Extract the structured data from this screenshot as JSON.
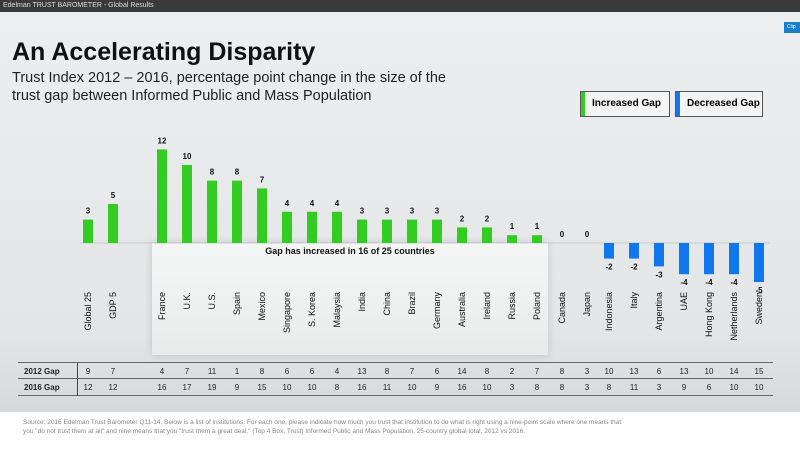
{
  "window_title": "Edelman TRUST BAROMETER - Global Results",
  "clip_button": "Clip",
  "colors": {
    "increased": "#33cc22",
    "decreased": "#1177ee"
  },
  "chart_data": {
    "type": "bar",
    "title": "An Accelerating Disparity",
    "subtitle": "Trust Index 2012 – 2016, percentage point change in the size of the trust gap between Informed Public and Mass Population",
    "categories": [
      "Global 25",
      "GDP 5",
      "France",
      "U.K.",
      "U.S.",
      "Spain",
      "Mexico",
      "Singapore",
      "S. Korea",
      "Malaysia",
      "India",
      "China",
      "Brazil",
      "Germany",
      "Australia",
      "Ireland",
      "Russia",
      "Poland",
      "Canada",
      "Japan",
      "Indonesia",
      "Italy",
      "Argentina",
      "UAE",
      "Hong Kong",
      "Netherlands",
      "Sweden"
    ],
    "values": [
      3,
      5,
      12,
      10,
      8,
      8,
      7,
      4,
      4,
      4,
      3,
      3,
      3,
      3,
      2,
      2,
      1,
      1,
      0,
      0,
      -2,
      -2,
      -3,
      -4,
      -4,
      -4,
      -5
    ],
    "legend": [
      "Increased Gap",
      "Decreased Gap"
    ],
    "legend_position": "top-right",
    "annotation": "Gap has increased in 16 of 25 countries",
    "table": {
      "rows": [
        {
          "label": "2012 Gap",
          "values": [
            "9",
            "7",
            "4",
            "7",
            "11",
            "1",
            "8",
            "6",
            "6",
            "4",
            "13",
            "8",
            "7",
            "6",
            "14",
            "8",
            "2",
            "7",
            "8",
            "3",
            "10",
            "13",
            "6",
            "13",
            "10",
            "14",
            "15"
          ]
        },
        {
          "label": "2016 Gap",
          "values": [
            "12",
            "12",
            "16",
            "17",
            "19",
            "9",
            "15",
            "10",
            "10",
            "8",
            "16",
            "11",
            "10",
            "9",
            "16",
            "10",
            "3",
            "8",
            "8",
            "3",
            "8",
            "11",
            "3",
            "9",
            "6",
            "10",
            "10"
          ]
        }
      ]
    }
  },
  "source": "Source: 2016 Edelman Trust Barometer Q11-14. Below is a list of institutions. For each one, please indicate how much you trust that institution to do what is right using a nine-point scale where one means that you \"do not trust them at all\" and nine means that you \"trust them a great deal.\" (Top 4 Box, Trust) Informed Public and Mass Population, 25-country global total, 2012 vs 2016."
}
